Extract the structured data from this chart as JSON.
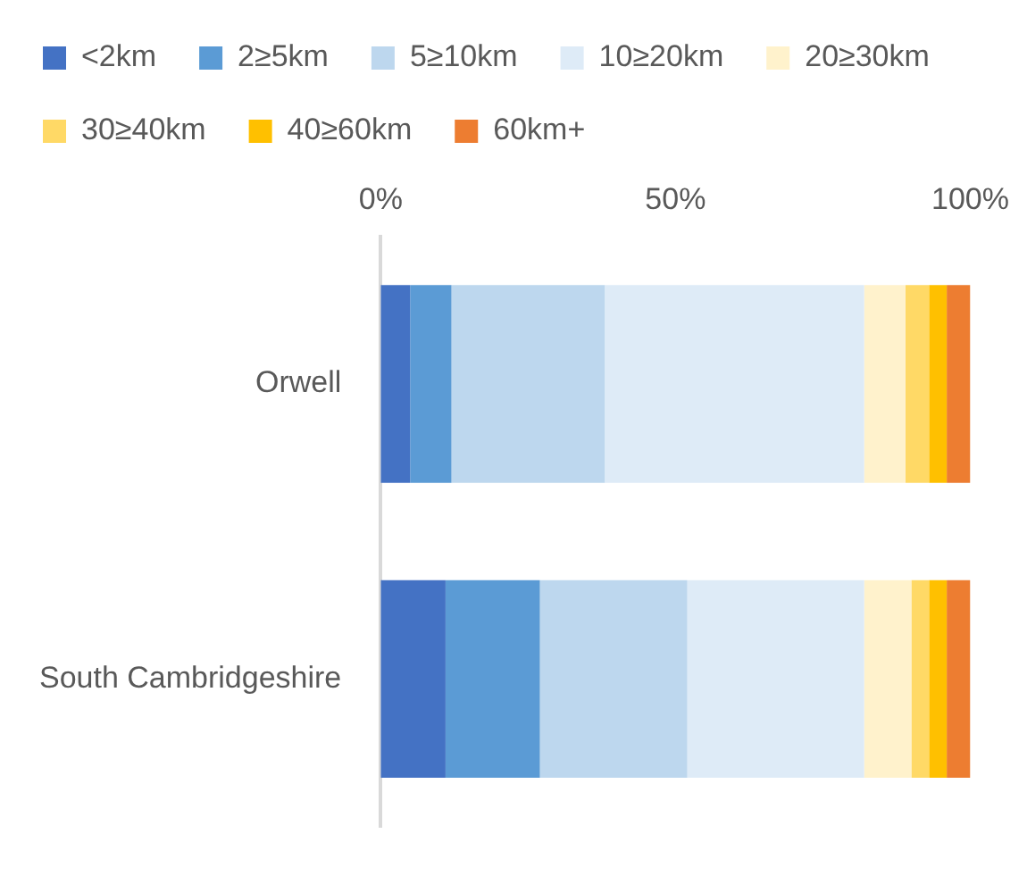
{
  "chart_data": {
    "type": "bar",
    "orientation": "horizontal",
    "stacked": true,
    "categories": [
      "Orwell",
      "South Cambridgeshire"
    ],
    "series": [
      {
        "name": "<2km",
        "color": "#4472c4",
        "values": [
          5,
          11
        ]
      },
      {
        "name": "2≥5km",
        "color": "#5b9bd5",
        "values": [
          7,
          16
        ]
      },
      {
        "name": "5≥10km",
        "color": "#bdd7ee",
        "values": [
          26,
          25
        ]
      },
      {
        "name": "10≥20km",
        "color": "#deebf7",
        "values": [
          44,
          30
        ]
      },
      {
        "name": "20≥30km",
        "color": "#fff2cc",
        "values": [
          7,
          8
        ]
      },
      {
        "name": "30≥40km",
        "color": "#ffd966",
        "values": [
          4,
          3
        ]
      },
      {
        "name": "40≥60km",
        "color": "#ffc000",
        "values": [
          3,
          3
        ]
      },
      {
        "name": "60km+",
        "color": "#ed7d31",
        "values": [
          4,
          4
        ]
      }
    ],
    "xlim": [
      0,
      100
    ],
    "xticks": [
      {
        "value": 0,
        "label": "0%"
      },
      {
        "value": 50,
        "label": "50%"
      },
      {
        "value": 100,
        "label": "100%"
      }
    ],
    "grid": false,
    "legend": "top"
  }
}
